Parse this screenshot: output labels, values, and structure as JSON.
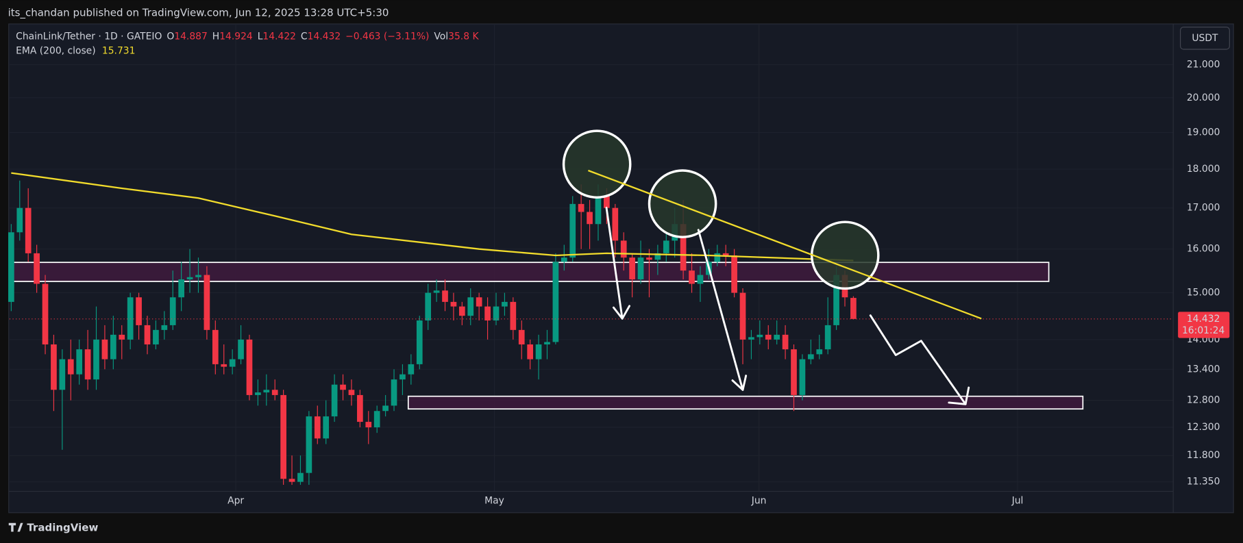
{
  "page": {
    "publisher": "its_chandan published on TradingView.com, Jun 12, 2025 13:28 UTC+5:30",
    "brand": "TradingView"
  },
  "chart_data": {
    "type": "candlestick",
    "legend": {
      "symbol": "ChainLink/Tether · 1D · GATEIO",
      "labels": [
        "O",
        "H",
        "L",
        "C"
      ],
      "change": "−0.463 (−3.11%)",
      "volume_label": "Vol",
      "volume": "35.8 K"
    },
    "currency": "USDT",
    "countdown": "16:01:24",
    "log_scale": true,
    "grid": true,
    "up_color": "#089981",
    "down_color": "#f23645",
    "xlim": [
      -0.2,
      136.6
    ],
    "xticks": [
      {
        "value": 26.4,
        "label": "Apr"
      },
      {
        "value": 56.8,
        "label": "May"
      },
      {
        "value": 87.9,
        "label": "Jun"
      },
      {
        "value": 118.3,
        "label": "Jul"
      }
    ],
    "ylim": [
      10.87,
      22.3
    ],
    "yticks": [
      {
        "value": 11.35,
        "label": "11.350"
      },
      {
        "value": 11.8,
        "label": "11.800"
      },
      {
        "value": 12.3,
        "label": "12.300"
      },
      {
        "value": 12.8,
        "label": "12.800"
      },
      {
        "value": 13.4,
        "label": "13.400"
      },
      {
        "value": 14,
        "label": "14.000"
      },
      {
        "value": 15,
        "label": "15.000"
      },
      {
        "value": 16,
        "label": "16.000"
      },
      {
        "value": 17,
        "label": "17.000"
      },
      {
        "value": 18,
        "label": "18.000"
      },
      {
        "value": 19,
        "label": "19.000"
      },
      {
        "value": 20,
        "label": "20.000"
      },
      {
        "value": 21,
        "label": "21.000"
      }
    ],
    "open": [
      14.8,
      16.4,
      17.0,
      15.9,
      15.2,
      13.9,
      13.0,
      13.6,
      13.3,
      13.8,
      13.2,
      14.0,
      13.6,
      14.1,
      14.0,
      14.9,
      14.3,
      13.9,
      14.2,
      14.3,
      14.9,
      15.3,
      15.35,
      15.4,
      14.2,
      13.5,
      13.45,
      13.6,
      14.0,
      12.9,
      12.95,
      13.0,
      12.9,
      11.4,
      11.35,
      11.5,
      12.5,
      12.1,
      12.5,
      13.1,
      13.0,
      12.9,
      12.4,
      12.3,
      12.6,
      12.7,
      13.2,
      13.3,
      13.5,
      14.4,
      15.0,
      15.05,
      14.8,
      14.7,
      14.5,
      14.9,
      14.7,
      14.4,
      14.7,
      14.8,
      14.2,
      13.9,
      13.6,
      13.9,
      13.95,
      15.7,
      15.8,
      17.1,
      16.9,
      16.6,
      17.3,
      17.0,
      16.2,
      15.8,
      15.3,
      15.8,
      15.75,
      15.9,
      16.2,
      16.6,
      15.5,
      15.2,
      15.4,
      15.7,
      15.9,
      15.85,
      15.0,
      14.0,
      14.05,
      14.1,
      14.0,
      14.1,
      13.8,
      12.9,
      13.6,
      13.7,
      13.8,
      14.3,
      15.4,
      14.887
    ],
    "high": [
      16.6,
      17.7,
      17.5,
      16.1,
      15.4,
      14.1,
      13.8,
      14.0,
      14.0,
      14.2,
      14.7,
      14.3,
      14.5,
      14.3,
      15.0,
      15.0,
      14.5,
      14.4,
      14.6,
      15.5,
      15.7,
      16.0,
      15.8,
      15.6,
      14.4,
      13.9,
      13.8,
      14.3,
      14.1,
      13.2,
      13.3,
      13.2,
      13.0,
      11.8,
      11.8,
      12.6,
      12.7,
      12.8,
      13.3,
      13.3,
      13.2,
      13.0,
      12.6,
      12.7,
      12.9,
      13.4,
      13.5,
      13.7,
      14.5,
      15.2,
      15.3,
      15.3,
      15.0,
      14.8,
      15.1,
      15.0,
      14.9,
      15.0,
      15.0,
      14.9,
      14.4,
      14.0,
      14.1,
      14.2,
      15.9,
      16.1,
      17.3,
      17.6,
      17.2,
      17.6,
      17.5,
      17.1,
      16.4,
      15.9,
      16.2,
      16.0,
      16.1,
      16.4,
      17.0,
      17.2,
      15.9,
      15.6,
      16.0,
      16.1,
      16.1,
      16.0,
      15.1,
      14.2,
      14.4,
      14.3,
      14.4,
      14.3,
      13.9,
      13.7,
      14.0,
      14.1,
      14.9,
      15.6,
      15.5,
      14.924
    ],
    "low": [
      14.6,
      16.2,
      15.7,
      15.0,
      13.7,
      12.6,
      11.9,
      12.8,
      13.1,
      13.0,
      13.0,
      13.4,
      13.4,
      13.6,
      13.8,
      14.0,
      13.7,
      13.8,
      14.0,
      14.2,
      14.6,
      15.0,
      15.0,
      14.0,
      13.3,
      13.3,
      13.3,
      13.5,
      12.8,
      12.7,
      12.7,
      12.8,
      11.3,
      11.3,
      11.3,
      11.3,
      12.0,
      12.0,
      12.4,
      12.8,
      12.7,
      12.3,
      12.0,
      12.2,
      12.5,
      12.6,
      12.9,
      13.1,
      13.4,
      14.2,
      14.8,
      14.6,
      14.4,
      14.3,
      14.3,
      14.4,
      14.0,
      14.3,
      14.5,
      14.0,
      13.6,
      13.4,
      13.2,
      13.6,
      13.9,
      15.5,
      15.7,
      16.0,
      16.0,
      16.2,
      16.6,
      15.8,
      15.5,
      14.9,
      15.2,
      14.9,
      15.4,
      15.7,
      15.8,
      15.3,
      15.0,
      14.8,
      15.3,
      15.6,
      15.6,
      14.9,
      13.5,
      13.6,
      13.9,
      13.8,
      13.9,
      13.6,
      12.6,
      12.8,
      13.5,
      13.6,
      13.7,
      14.2,
      14.7,
      14.422
    ],
    "close": [
      16.4,
      17.0,
      15.9,
      15.2,
      13.9,
      13.0,
      13.6,
      13.3,
      13.8,
      13.2,
      14.0,
      13.6,
      14.1,
      14.0,
      14.9,
      14.3,
      13.9,
      14.2,
      14.3,
      14.9,
      15.3,
      15.35,
      15.4,
      14.2,
      13.5,
      13.45,
      13.6,
      14.0,
      12.9,
      12.95,
      13.0,
      12.9,
      11.4,
      11.35,
      11.5,
      12.5,
      12.1,
      12.5,
      13.1,
      13.0,
      12.9,
      12.4,
      12.3,
      12.6,
      12.7,
      13.2,
      13.3,
      13.5,
      14.4,
      15.0,
      15.05,
      14.8,
      14.7,
      14.5,
      14.9,
      14.7,
      14.4,
      14.7,
      14.8,
      14.2,
      13.9,
      13.6,
      13.9,
      13.95,
      15.7,
      15.8,
      17.1,
      16.9,
      16.6,
      17.3,
      17.0,
      16.2,
      15.8,
      15.3,
      15.8,
      15.75,
      15.9,
      16.2,
      16.6,
      15.5,
      15.2,
      15.4,
      15.7,
      15.9,
      15.85,
      15.0,
      14.0,
      14.05,
      14.1,
      14.0,
      14.1,
      13.8,
      12.9,
      13.6,
      13.7,
      13.8,
      14.3,
      15.4,
      14.9,
      14.432
    ],
    "ema": {
      "name": "EMA (200, close)",
      "color": "#f2dc2c",
      "x": [
        0,
        13,
        22,
        31,
        40,
        55,
        64,
        70,
        82,
        99
      ],
      "values": [
        17.9,
        17.5,
        17.25,
        16.8,
        16.35,
        16.0,
        15.85,
        15.9,
        15.85,
        15.731
      ]
    }
  }
}
